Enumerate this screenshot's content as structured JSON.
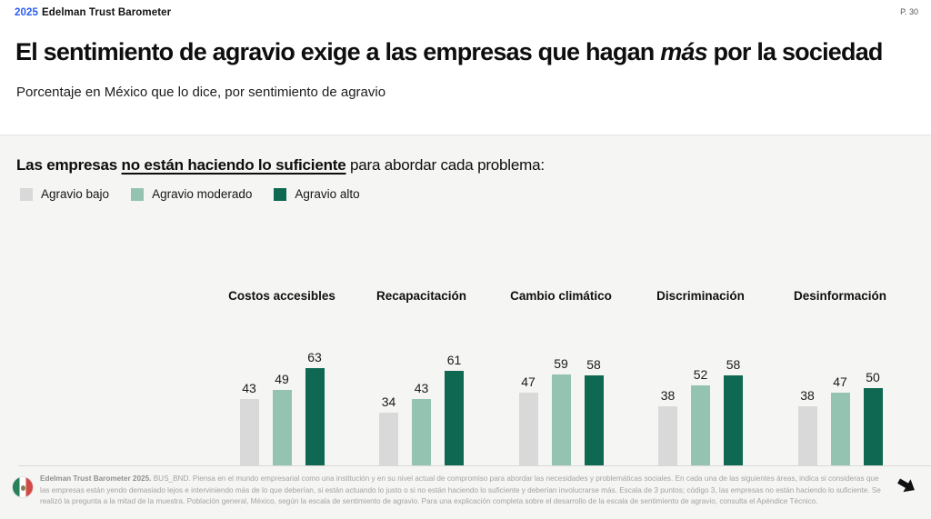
{
  "header": {
    "brand_year": "2025",
    "brand_name": "Edelman Trust Barometer",
    "page_number": "P. 30"
  },
  "title": {
    "pre": "El sentimiento de agravio exige a las empresas que hagan ",
    "italic": "más",
    "post": " por la sociedad"
  },
  "subtitle": "Porcentaje en México que lo dice, por sentimiento de agravio",
  "statement": {
    "bold": "Las empresas ",
    "underlined": "no están haciendo lo suficiente",
    "rest": " para abordar cada problema:"
  },
  "chart_data": {
    "type": "bar",
    "title": "Las empresas no están haciendo lo suficiente para abordar cada problema:",
    "unit": "%",
    "categories": [
      "Costos accesibles",
      "Recapacitación",
      "Cambio climático",
      "Discriminación",
      "Desinformación"
    ],
    "series": [
      {
        "name": "Agravio bajo",
        "color": "#d9d9d9",
        "values": [
          43,
          34,
          47,
          38,
          38
        ]
      },
      {
        "name": "Agravio moderado",
        "color": "#94c4b1",
        "values": [
          49,
          43,
          59,
          52,
          47
        ]
      },
      {
        "name": "Agravio alto",
        "color": "#0e6852",
        "values": [
          63,
          61,
          58,
          58,
          50
        ]
      }
    ],
    "value_labels": true,
    "axes_visible": false,
    "gridlines": false,
    "legend_position": "top-left",
    "ylim": [
      0,
      70
    ]
  },
  "footnote": {
    "source_bold": "Edelman Trust Barometer 2025.",
    "text": " BUS_BND. Piensa en el mundo empresarial como una institución y en su nivel actual de compromiso para abordar las necesidades y problemáticas sociales. En cada una de las siguientes áreas, indica si consideras que las empresas están yendo demasiado lejos e interviniendo más de lo que deberían, si están actuando lo justo o si no están haciendo lo suficiente y deberían involucrarse más. Escala de 3 puntos; código 3, las empresas no están haciendo lo suficiente. Se realizó la pregunta a la mitad de la muestra. Población general, México, según la escala de sentimiento de agravio. Para una explicación completa sobre el desarrollo de la escala de sentimiento de agravio, consulta el Apéndice Técnico."
  },
  "icons": {
    "flag": "mexico-flag",
    "next_arrow": "right-arrow"
  }
}
